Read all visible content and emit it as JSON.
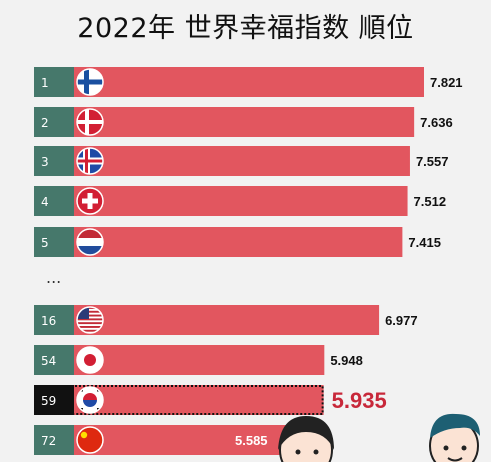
{
  "chart_data": {
    "type": "bar",
    "title": "2022年 世界幸福指数 順位",
    "orientation": "horizontal",
    "xlim": [
      5.0,
      7.9
    ],
    "gap_marker": "...",
    "rows": [
      {
        "rank": "1",
        "country": "Finland",
        "flag": "finland-flag",
        "value": 7.821,
        "label": "7.821",
        "highlight": false
      },
      {
        "rank": "2",
        "country": "Denmark",
        "flag": "denmark-flag",
        "value": 7.636,
        "label": "7.636",
        "highlight": false
      },
      {
        "rank": "3",
        "country": "Iceland",
        "flag": "iceland-flag",
        "value": 7.557,
        "label": "7.557",
        "highlight": false
      },
      {
        "rank": "4",
        "country": "Switzerland",
        "flag": "switzerland-flag",
        "value": 7.512,
        "label": "7.512",
        "highlight": false
      },
      {
        "rank": "5",
        "country": "Netherlands",
        "flag": "netherlands-flag",
        "value": 7.415,
        "label": "7.415",
        "highlight": false
      },
      {
        "rank": "16",
        "country": "United States",
        "flag": "usa-flag",
        "value": 6.977,
        "label": "6.977",
        "highlight": false
      },
      {
        "rank": "54",
        "country": "Japan",
        "flag": "japan-flag",
        "value": 5.948,
        "label": "5.948",
        "highlight": false
      },
      {
        "rank": "59",
        "country": "South Korea",
        "flag": "korea-flag",
        "value": 5.935,
        "label": "5.935",
        "highlight": true
      },
      {
        "rank": "72",
        "country": "China",
        "flag": "china-flag",
        "value": 5.585,
        "label": "5.585",
        "highlight": false
      }
    ],
    "colors": {
      "bar": "#e2565f",
      "rank_bg": "#46786b",
      "highlight_rank_bg": "#111111",
      "highlight_label": "#c8283a"
    }
  }
}
